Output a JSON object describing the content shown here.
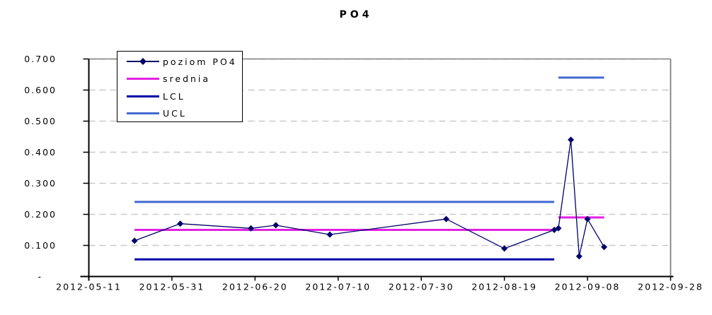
{
  "chart_data": {
    "type": "line",
    "title": "PO4",
    "x_axis": {
      "type": "date",
      "start": "2012-05-11",
      "end": "2012-09-28",
      "tick_interval_days": 20,
      "tick_labels": [
        "2012-05-11",
        "2012-05-31",
        "2012-06-20",
        "2012-07-10",
        "2012-07-30",
        "2012-08-19",
        "2012-09-08",
        "2012-09-28"
      ]
    },
    "y_axis": {
      "min": 0,
      "max": 0.7,
      "tick_step": 0.1,
      "tick_labels": [
        "-",
        "0.100",
        "0.200",
        "0.300",
        "0.400",
        "0.500",
        "0.600",
        "0.700"
      ]
    },
    "series": [
      {
        "name": "poziom PO4",
        "kind": "line-markers",
        "color": "#00006A",
        "marker": "diamond",
        "line_width": 1.3,
        "points": [
          {
            "date": "2012-05-22",
            "value": 0.115
          },
          {
            "date": "2012-06-02",
            "value": 0.17
          },
          {
            "date": "2012-06-19",
            "value": 0.155
          },
          {
            "date": "2012-06-25",
            "value": 0.165
          },
          {
            "date": "2012-07-08",
            "value": 0.135
          },
          {
            "date": "2012-08-05",
            "value": 0.185
          },
          {
            "date": "2012-08-19",
            "value": 0.09
          },
          {
            "date": "2012-08-31",
            "value": 0.15
          },
          {
            "date": "2012-09-01",
            "value": 0.155
          },
          {
            "date": "2012-09-04",
            "value": 0.44
          },
          {
            "date": "2012-09-06",
            "value": 0.065
          },
          {
            "date": "2012-09-08",
            "value": 0.185
          },
          {
            "date": "2012-09-12",
            "value": 0.095
          }
        ]
      },
      {
        "name": "srednia",
        "kind": "reference-line",
        "color": "#E320E3",
        "line_width": 3,
        "segments": [
          {
            "from": "2012-05-22",
            "to": "2012-08-31",
            "value": 0.15
          },
          {
            "from": "2012-09-01",
            "to": "2012-09-12",
            "value": 0.19
          }
        ]
      },
      {
        "name": "LCL",
        "kind": "reference-line",
        "color": "#0000A8",
        "line_width": 3,
        "segments": [
          {
            "from": "2012-05-22",
            "to": "2012-08-31",
            "value": 0.055
          }
        ]
      },
      {
        "name": "UCL",
        "kind": "reference-line",
        "color": "#4169D2",
        "line_width": 3,
        "segments": [
          {
            "from": "2012-05-22",
            "to": "2012-08-31",
            "value": 0.24
          },
          {
            "from": "2012-09-01",
            "to": "2012-09-12",
            "value": 0.64
          }
        ]
      }
    ],
    "grid": {
      "horizontal": true,
      "style": "dashed",
      "color": "#C9C9C9"
    },
    "styles": {
      "plot_border_color": "#808080",
      "axis_color": "#000000",
      "background": "#FFFFFF"
    },
    "legend": {
      "position": "top-left",
      "border": "#000000"
    }
  }
}
